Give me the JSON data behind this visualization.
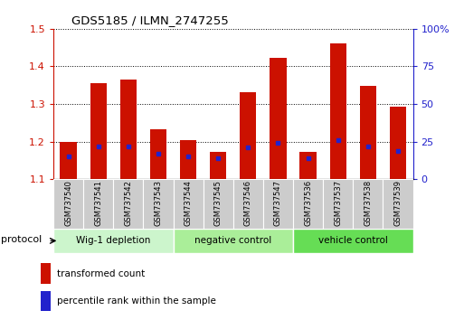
{
  "title": "GDS5185 / ILMN_2747255",
  "samples": [
    "GSM737540",
    "GSM737541",
    "GSM737542",
    "GSM737543",
    "GSM737544",
    "GSM737545",
    "GSM737546",
    "GSM737547",
    "GSM737536",
    "GSM737537",
    "GSM737538",
    "GSM737539"
  ],
  "transformed_count": [
    1.2,
    1.355,
    1.365,
    1.232,
    1.205,
    1.173,
    1.332,
    1.422,
    1.173,
    1.462,
    1.348,
    1.292
  ],
  "percentile_rank": [
    15,
    22,
    22,
    17,
    15,
    14,
    21,
    24,
    14,
    26,
    22,
    19
  ],
  "groups": [
    {
      "label": "Wig-1 depletion",
      "indices": [
        0,
        1,
        2,
        3
      ]
    },
    {
      "label": "negative control",
      "indices": [
        4,
        5,
        6,
        7
      ]
    },
    {
      "label": "vehicle control",
      "indices": [
        8,
        9,
        10,
        11
      ]
    }
  ],
  "group_colors": [
    "#ccf5cc",
    "#aaee99",
    "#66dd55"
  ],
  "ylim_left": [
    1.1,
    1.5
  ],
  "ylim_right": [
    0,
    100
  ],
  "yticks_left": [
    1.1,
    1.2,
    1.3,
    1.4,
    1.5
  ],
  "yticks_right": [
    0,
    25,
    50,
    75,
    100
  ],
  "ytick_labels_right": [
    "0",
    "25",
    "50",
    "75",
    "100%"
  ],
  "bar_color": "#cc1100",
  "percentile_color": "#2222cc",
  "bar_width": 0.55,
  "ylabel_left_color": "#cc1100",
  "ylabel_right_color": "#2222cc",
  "legend_red_label": "transformed count",
  "legend_blue_label": "percentile rank within the sample",
  "protocol_label": "protocol",
  "label_box_color": "#cccccc",
  "fig_width": 5.13,
  "fig_height": 3.54,
  "dpi": 100
}
